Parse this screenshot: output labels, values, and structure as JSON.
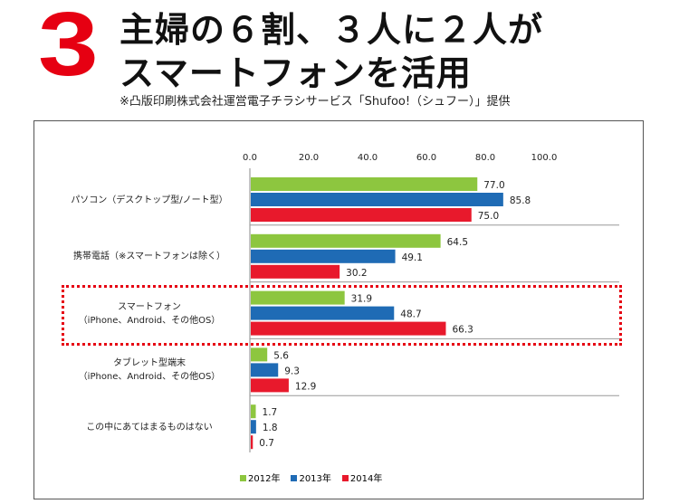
{
  "header": {
    "number": "3",
    "title_line1": "主婦の６割、３人に２人が",
    "title_line2": "スマートフォンを活用",
    "note": "※凸版印刷株式会社運営電子チラシサービス「Shufoo!（シュフー）」提供"
  },
  "chart_data": {
    "type": "bar",
    "orientation": "horizontal",
    "xlim": [
      0,
      100
    ],
    "ticks": [
      "0.0",
      "20.0",
      "40.0",
      "60.0",
      "80.0",
      "100.0"
    ],
    "categories": [
      [
        "パソコン（デスクトップ型/ノート型）"
      ],
      [
        "携帯電話（※スマートフォンは除く）"
      ],
      [
        "スマートフォン",
        "（iPhone、Android、その他OS）"
      ],
      [
        "タブレット型端末",
        "（iPhone、Android、その他OS）"
      ],
      [
        "この中にあてはまるものはない"
      ]
    ],
    "series": [
      {
        "name": "2012年",
        "color": "#8dc63f",
        "values": [
          77.0,
          64.5,
          31.9,
          5.6,
          1.7
        ]
      },
      {
        "name": "2013年",
        "color": "#1f6bb5",
        "values": [
          85.8,
          49.1,
          48.7,
          9.3,
          1.8
        ]
      },
      {
        "name": "2014年",
        "color": "#e8192c",
        "values": [
          75.0,
          30.2,
          66.3,
          12.9,
          0.7
        ]
      }
    ],
    "highlighted_category": 2
  }
}
